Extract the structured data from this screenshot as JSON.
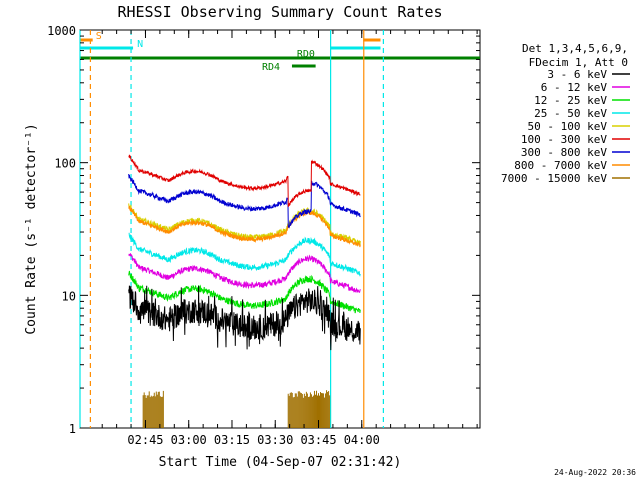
{
  "chart_data": {
    "type": "line",
    "title": "RHESSI Observing Summary Count Rates",
    "xlabel": "Start Time (04-Sep-07 02:31:42)",
    "ylabel": "Count Rate (s⁻¹ detector⁻¹)",
    "x_unit": "minutes",
    "xlim": [
      -8.7,
      130
    ],
    "x_ticks": [
      {
        "t": 14,
        "label": "02:45"
      },
      {
        "t": 29,
        "label": "03:00"
      },
      {
        "t": 44,
        "label": "03:15"
      },
      {
        "t": 59,
        "label": "03:30"
      },
      {
        "t": 74,
        "label": "03:45"
      },
      {
        "t": 89,
        "label": "04:00"
      }
    ],
    "y_scale": "log",
    "ylim": [
      1,
      1000
    ],
    "y_ticks": [
      {
        "v": 1,
        "label": "1"
      },
      {
        "v": 10,
        "label": "10"
      },
      {
        "v": 100,
        "label": "100"
      },
      {
        "v": 1000,
        "label": "1000"
      }
    ],
    "legend_header": [
      "Det 1,3,4,5,6,9,",
      "FDecim 1, Att 0"
    ],
    "legend_position": "right",
    "series": [
      {
        "name": "3 - 6 keV",
        "color": "#000000",
        "base": 6.5,
        "noise": 0.22
      },
      {
        "name": "6 - 12 keV",
        "color": "#e000e0",
        "base": 13.5,
        "noise": 0.05
      },
      {
        "name": "12 - 25 keV",
        "color": "#00e000",
        "base": 9.5,
        "noise": 0.06
      },
      {
        "name": "25 - 50 keV",
        "color": "#00e8e8",
        "base": 18.5,
        "noise": 0.05
      },
      {
        "name": "50 - 100 keV",
        "color": "#d8d000",
        "base": 31,
        "noise": 0.05
      },
      {
        "name": "100 - 300 keV",
        "color": "#e00000",
        "base": 73,
        "noise": 0.03
      },
      {
        "name": "300 - 800 keV",
        "color": "#0000d0",
        "base": 51,
        "noise": 0.04
      },
      {
        "name": "800 - 7000 keV",
        "color": "#ff8c00",
        "base": 30,
        "noise": 0.04
      },
      {
        "name": "7000 - 15000 keV",
        "color": "#a07000",
        "base": 0,
        "noise": 0
      }
    ],
    "data_start": 8.2,
    "data_end": 88.5,
    "low_rate_interval": [
      63.5,
      71.5
    ],
    "spike_intervals": [
      [
        13.2,
        20.3
      ],
      [
        63.5,
        78
      ]
    ],
    "flags": [
      {
        "label": "S",
        "color": "#ff8c00",
        "segments": [
          [
            -8.7,
            -4.3
          ],
          [
            89.5,
            95.5
          ]
        ],
        "level": 0
      },
      {
        "label": "N",
        "color": "#00e8e8",
        "segments": [
          [
            -8.7,
            9.7
          ],
          [
            78.2,
            95.5
          ]
        ],
        "level": 1
      },
      {
        "label": "RD0",
        "color": "#008000",
        "segments": [
          [
            -8.7,
            130
          ]
        ],
        "level": 2
      },
      {
        "label": "RD4",
        "color": "#008000",
        "segments": [
          [
            64.8,
            73
          ]
        ],
        "level": 3
      }
    ],
    "vlines": [
      {
        "t": -8.7,
        "color": "#00e8e8",
        "dashed": false
      },
      {
        "t": -5.1,
        "color": "#ff8c00",
        "dashed": true
      },
      {
        "t": 9.0,
        "color": "#00e8e8",
        "dashed": true
      },
      {
        "t": 78.2,
        "color": "#00e8e8",
        "dashed": false
      },
      {
        "t": 89.7,
        "color": "#ff8c00",
        "dashed": false
      },
      {
        "t": 96.5,
        "color": "#00e8e8",
        "dashed": true
      }
    ],
    "grid": false
  },
  "footer_date": "24-Aug-2022 20:36"
}
